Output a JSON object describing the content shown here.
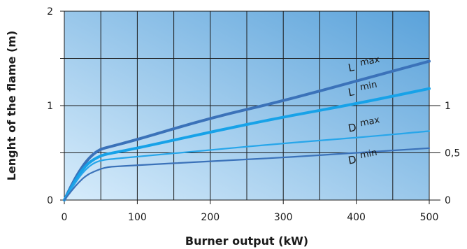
{
  "chart_data": {
    "type": "line",
    "title": "",
    "xlabel": "Burner output (kW)",
    "ylabel": "Lenght of the flame (m)",
    "xlim": [
      0,
      500
    ],
    "ylim": [
      0,
      2
    ],
    "x_ticks": [
      "0",
      "100",
      "200",
      "300",
      "400",
      "500"
    ],
    "y_ticks": [
      "0",
      "1",
      "2"
    ],
    "secondary_y_ticks": [
      {
        "label": "0",
        "value": 0
      },
      {
        "label": "0,5",
        "value": 0.5
      },
      {
        "label": "1",
        "value": 1
      }
    ],
    "grid": true,
    "colors": {
      "bg_light": "#d7ecfb",
      "bg_dark": "#5aa2da",
      "grid": "#1a1a1a",
      "l_max": "#3b72b9",
      "l_min": "#17a2e8",
      "d_max": "#27a6ea",
      "d_min": "#3b72b9"
    },
    "series": [
      {
        "name": "L max",
        "main": "L",
        "sub": "max",
        "label_x": 390,
        "label_y": 1.36,
        "x": [
          0,
          10,
          20,
          30,
          40,
          50,
          60,
          100,
          200,
          300,
          400,
          500
        ],
        "y": [
          0,
          0.16,
          0.3,
          0.41,
          0.49,
          0.54,
          0.56,
          0.64,
          0.87,
          1.05,
          1.26,
          1.47
        ]
      },
      {
        "name": "L min",
        "main": "L",
        "sub": "min",
        "label_x": 390,
        "label_y": 1.1,
        "x": [
          0,
          10,
          20,
          30,
          40,
          50,
          60,
          100,
          200,
          300,
          400,
          500
        ],
        "y": [
          0,
          0.14,
          0.27,
          0.37,
          0.43,
          0.47,
          0.49,
          0.55,
          0.72,
          0.88,
          1.02,
          1.18
        ]
      },
      {
        "name": "D max",
        "main": "D",
        "sub": "max",
        "label_x": 390,
        "label_y": 0.72,
        "x": [
          0,
          10,
          20,
          30,
          40,
          50,
          60,
          100,
          200,
          300,
          400,
          500
        ],
        "y": [
          0,
          0.12,
          0.24,
          0.33,
          0.39,
          0.42,
          0.43,
          0.46,
          0.53,
          0.6,
          0.66,
          0.73
        ]
      },
      {
        "name": "D min",
        "main": "D",
        "sub": "min",
        "label_x": 390,
        "label_y": 0.38,
        "x": [
          0,
          10,
          20,
          30,
          40,
          50,
          60,
          70,
          100,
          200,
          300,
          400,
          500
        ],
        "y": [
          0,
          0.1,
          0.19,
          0.26,
          0.3,
          0.33,
          0.35,
          0.355,
          0.37,
          0.41,
          0.45,
          0.5,
          0.55
        ]
      }
    ]
  }
}
